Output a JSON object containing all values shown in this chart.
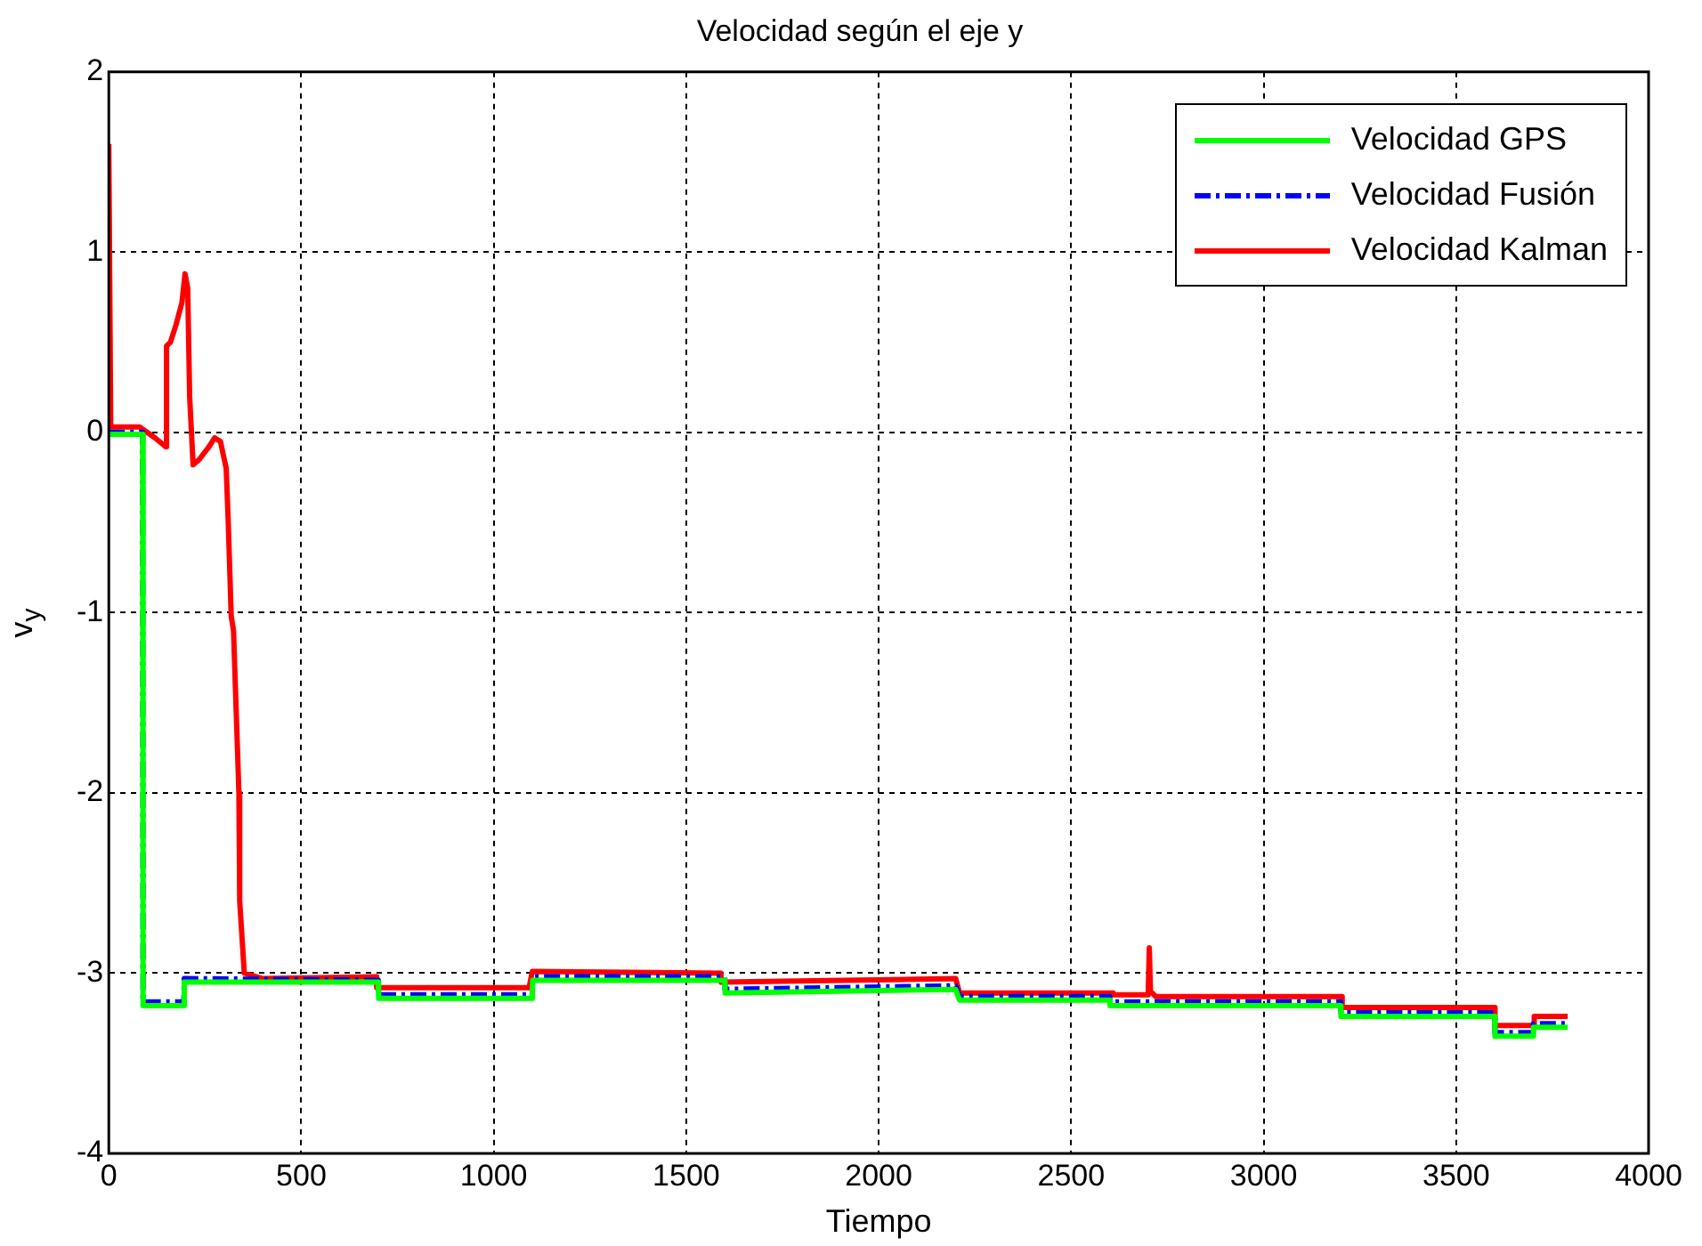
{
  "chart_data": {
    "type": "line",
    "title": "Velocidad según el eje y",
    "xlabel": "Tiempo",
    "ylabel": "v$_{y}$",
    "xlim": [
      0,
      4000
    ],
    "xticks": [
      0,
      500,
      1000,
      1500,
      2000,
      2500,
      3000,
      3500,
      4000
    ],
    "ylim": [
      -4,
      2
    ],
    "yticks": [
      -4,
      -3,
      -2,
      -1,
      0,
      1,
      2
    ],
    "grid": true,
    "legend": "top right",
    "marker": "none",
    "series": [
      {
        "name": "Velocidad GPS",
        "color": "#00ff00",
        "line_style": "solid",
        "x": [
          0,
          88,
          89,
          195,
          196,
          700,
          701,
          1100,
          1101,
          1600,
          1601,
          2200,
          2210,
          2600,
          2601,
          3200,
          3201,
          3600,
          3601,
          3700,
          3701,
          3790
        ],
        "values": [
          -0.01,
          -0.01,
          -3.18,
          -3.18,
          -3.05,
          -3.05,
          -3.14,
          -3.14,
          -3.04,
          -3.04,
          -3.11,
          -3.09,
          -3.15,
          -3.15,
          -3.18,
          -3.18,
          -3.24,
          -3.24,
          -3.35,
          -3.35,
          -3.3,
          -3.3
        ]
      },
      {
        "name": "Velocidad Fusión",
        "color": "#0000ff",
        "line_style": "dashed",
        "x": [
          0,
          88,
          89,
          195,
          196,
          700,
          701,
          1100,
          1101,
          1600,
          1601,
          2200,
          2210,
          2600,
          2601,
          3200,
          3201,
          3600,
          3601,
          3700,
          3701,
          3790
        ],
        "values": [
          0,
          0,
          -3.16,
          -3.16,
          -3.03,
          -3.04,
          -3.12,
          -3.12,
          -3.02,
          -3.02,
          -3.09,
          -3.07,
          -3.13,
          -3.13,
          -3.16,
          -3.16,
          -3.22,
          -3.22,
          -3.33,
          -3.33,
          -3.28,
          -3.28
        ]
      },
      {
        "name": "Velocidad Kalman",
        "color": "#ff0000",
        "line_style": "solid",
        "x": [
          0,
          5,
          80,
          120,
          148,
          150,
          160,
          175,
          190,
          198,
          205,
          210,
          219,
          235,
          260,
          275,
          290,
          305,
          310,
          318,
          324,
          338,
          340,
          352,
          400,
          695,
          696,
          1092,
          1100,
          1590,
          1591,
          2200,
          2210,
          2608,
          2609,
          2700,
          2703,
          2706,
          2720,
          3203,
          3204,
          3600,
          3601,
          3700,
          3703,
          3790
        ],
        "values": [
          1.6,
          0.03,
          0.03,
          -0.03,
          -0.08,
          0.48,
          0.5,
          0.6,
          0.72,
          0.88,
          0.8,
          0.2,
          -0.18,
          -0.15,
          -0.08,
          -0.03,
          -0.05,
          -0.2,
          -0.48,
          -1.02,
          -1.1,
          -2.0,
          -2.6,
          -3.0,
          -3.03,
          -3.02,
          -3.08,
          -3.08,
          -2.99,
          -3.0,
          -3.05,
          -3.03,
          -3.11,
          -3.11,
          -3.12,
          -3.12,
          -2.86,
          -3.1,
          -3.13,
          -3.13,
          -3.19,
          -3.19,
          -3.29,
          -3.29,
          -3.24,
          -3.24
        ]
      }
    ]
  }
}
